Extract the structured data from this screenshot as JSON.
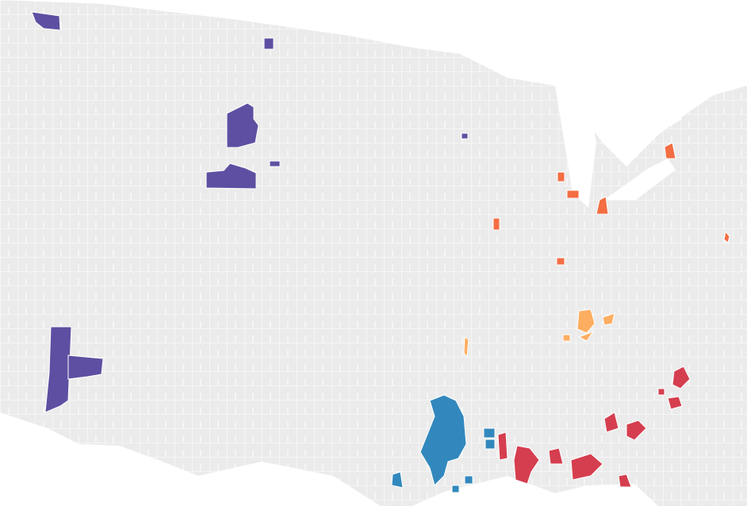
{
  "map": {
    "colors": [
      "#5e4fa2",
      "#f46d43",
      "#fdae61",
      "#3288bd",
      "#d53e4f"
    ]
  }
}
